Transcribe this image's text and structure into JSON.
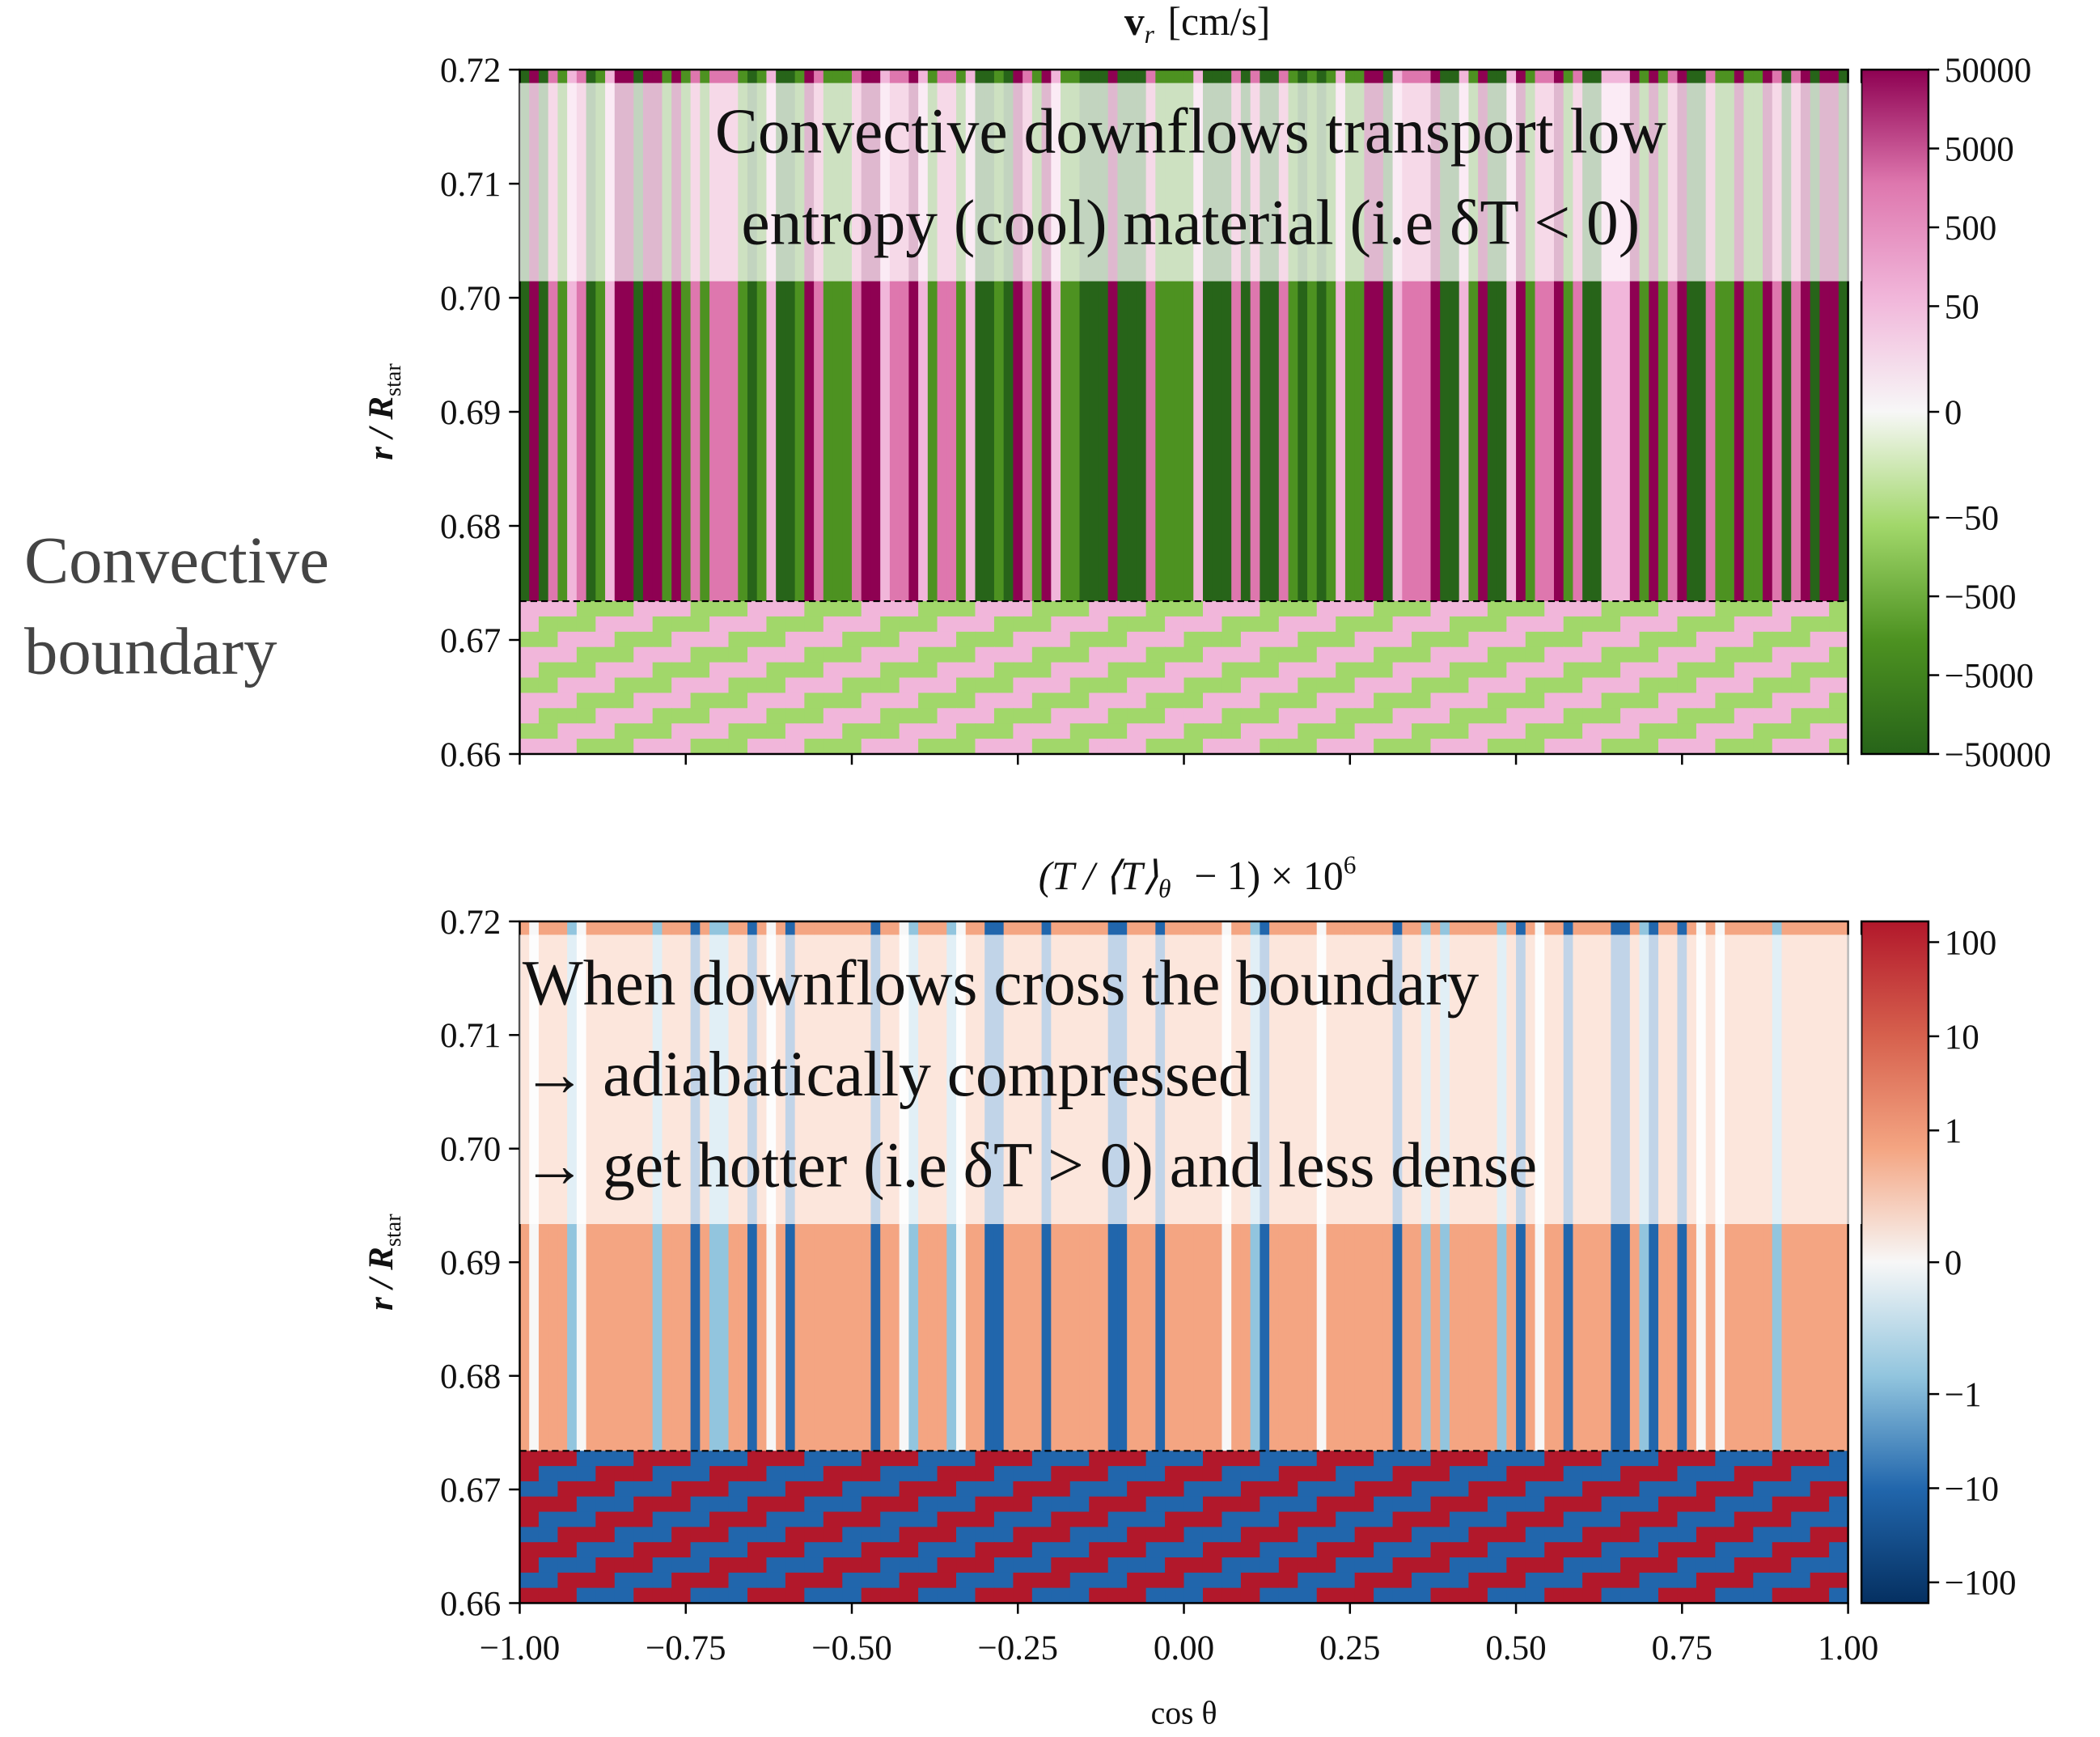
{
  "side_label": [
    "Convective",
    "boundary"
  ],
  "chart_data": [
    {
      "type": "heatmap",
      "title": {
        "main": "v",
        "sub": "r",
        "rest": "[cm/s]"
      },
      "ylabel": {
        "main": "r / R",
        "sub": "star"
      },
      "xlim": [
        -1,
        1
      ],
      "xticks": [
        -1,
        -0.75,
        -0.5,
        -0.25,
        0,
        0.25,
        0.5,
        0.75,
        1
      ],
      "ylim": [
        0.66,
        0.72
      ],
      "yticks": [
        0.66,
        0.67,
        0.68,
        0.69,
        {
          "value": 0.7,
          "label": "0.70"
        },
        0.71,
        0.72
      ],
      "boundary": 0.6734,
      "colormap": [
        "#276419",
        "#4d9221",
        "#a1d76a",
        "#f7f7f7",
        "#f1b6da",
        "#de77ae",
        "#8e0152"
      ],
      "colorbar": {
        "scale": "symlog",
        "linthresh": 50,
        "linscale": 1.34,
        "clim": [
          -50000,
          50000
        ],
        "ticks": [
          50000,
          5000,
          500,
          50,
          0,
          {
            "value": -50,
            "label": "−50"
          },
          {
            "value": -500,
            "label": "−500"
          },
          {
            "value": -5000,
            "label": "−5000"
          },
          {
            "value": -50000,
            "label": "−50000"
          }
        ]
      },
      "annotation": {
        "align": "center",
        "lines": [
          "Convective downflows transport low",
          "entropy (cool) material (i.e δT < 0)"
        ]
      }
    },
    {
      "type": "heatmap",
      "title": {
        "main": "(T / ⟨T⟩",
        "sub": "θ",
        "rest": " − 1) × 10",
        "sup": "6"
      },
      "ylabel": {
        "main": "r / R",
        "sub": "star"
      },
      "xlabel": "cos θ",
      "xlim": [
        -1,
        1
      ],
      "xticks": [
        {
          "value": -1,
          "label": "−1.00"
        },
        {
          "value": -0.75,
          "label": "−0.75"
        },
        {
          "value": -0.5,
          "label": "−0.50"
        },
        {
          "value": -0.25,
          "label": "−0.25"
        },
        {
          "value": 0,
          "label": "0.00"
        },
        0.25,
        {
          "value": 0.5,
          "label": "0.50"
        },
        0.75,
        {
          "value": 1,
          "label": "1.00"
        }
      ],
      "ylim": [
        0.66,
        0.72
      ],
      "yticks": [
        0.66,
        0.67,
        0.68,
        0.69,
        {
          "value": 0.7,
          "label": "0.70"
        },
        0.71,
        0.72
      ],
      "boundary": 0.6734,
      "colormap": [
        "#053061",
        "#2166ac",
        "#92c5de",
        "#f7f7f7",
        "#f4a582",
        "#d6604d",
        "#b2182b"
      ],
      "colorbar": {
        "scale": "symlog",
        "linthresh": 1,
        "linscale": 1.4,
        "clim": [
          -166,
          166
        ],
        "ticks": [
          100,
          10,
          1,
          0,
          {
            "value": -1,
            "label": "−1"
          },
          {
            "value": -10,
            "label": "−10"
          },
          {
            "value": -100,
            "label": "−100"
          }
        ]
      },
      "annotation": {
        "align": "left",
        "lines": [
          "When downflows cross the boundary",
          "→  adiabatically compressed",
          "→ get hotter (i.e δT > 0) and less dense"
        ]
      }
    }
  ]
}
